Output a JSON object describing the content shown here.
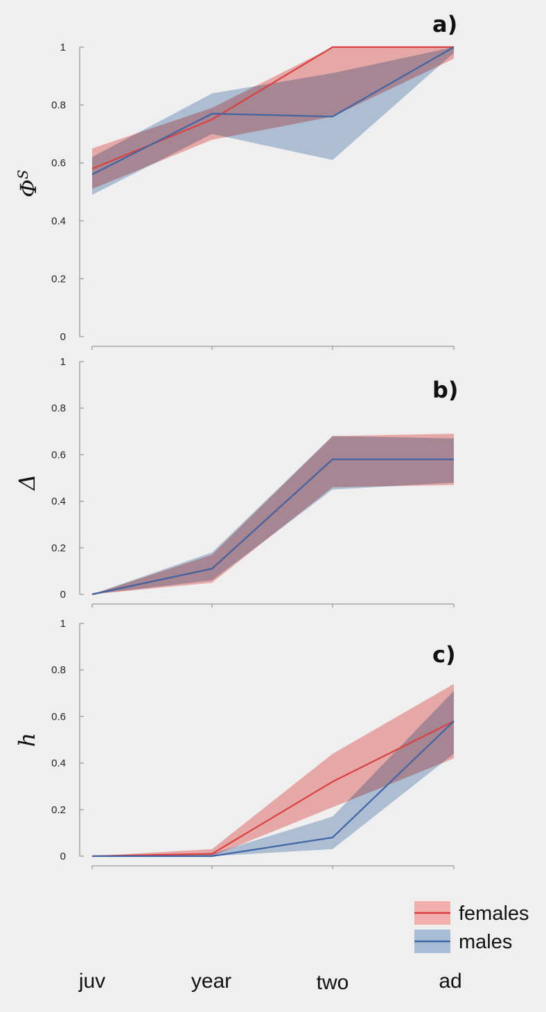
{
  "chart_data": [
    {
      "type": "line",
      "panel_label": "a)",
      "ylabel": "ΦS",
      "ylim": [
        0,
        1
      ],
      "yticks": [
        "0",
        "0.2",
        "0.4",
        "0.6",
        "0.8",
        "1"
      ],
      "categories": [
        "juv",
        "year",
        "two",
        "ad"
      ],
      "series": [
        {
          "name": "females",
          "values": [
            0.58,
            0.75,
            1.0,
            1.0
          ],
          "lower": [
            0.51,
            0.68,
            0.76,
            0.96
          ],
          "upper": [
            0.65,
            0.79,
            1.0,
            1.0
          ]
        },
        {
          "name": "males",
          "values": [
            0.56,
            0.77,
            0.76,
            1.0
          ],
          "lower": [
            0.49,
            0.7,
            0.61,
            0.98
          ],
          "upper": [
            0.62,
            0.84,
            0.91,
            1.0
          ]
        }
      ]
    },
    {
      "type": "line",
      "panel_label": "b)",
      "ylabel": "Δ",
      "ylim": [
        0,
        1
      ],
      "yticks": [
        "0",
        "0.2",
        "0.4",
        "0.6",
        "0.8",
        "1"
      ],
      "categories": [
        "juv",
        "year",
        "two",
        "ad"
      ],
      "series": [
        {
          "name": "females",
          "values": [
            0.0,
            0.11,
            0.58,
            0.58
          ],
          "lower": [
            0.0,
            0.05,
            0.46,
            0.47
          ],
          "upper": [
            0.0,
            0.17,
            0.68,
            0.69
          ]
        },
        {
          "name": "males",
          "values": [
            0.0,
            0.11,
            0.58,
            0.58
          ],
          "lower": [
            0.0,
            0.06,
            0.45,
            0.48
          ],
          "upper": [
            0.0,
            0.18,
            0.68,
            0.67
          ]
        }
      ]
    },
    {
      "type": "line",
      "panel_label": "c)",
      "ylabel": "h",
      "ylim": [
        0,
        1
      ],
      "yticks": [
        "0",
        "0.2",
        "0.4",
        "0.6",
        "0.8",
        "1"
      ],
      "categories": [
        "juv",
        "year",
        "two",
        "ad"
      ],
      "series": [
        {
          "name": "females",
          "values": [
            0.0,
            0.01,
            0.32,
            0.58
          ],
          "lower": [
            0.0,
            0.0,
            0.21,
            0.42
          ],
          "upper": [
            0.0,
            0.03,
            0.44,
            0.74
          ]
        },
        {
          "name": "males",
          "values": [
            0.0,
            0.0,
            0.08,
            0.58
          ],
          "lower": [
            0.0,
            0.0,
            0.03,
            0.44
          ],
          "upper": [
            0.0,
            0.01,
            0.17,
            0.71
          ]
        }
      ]
    }
  ],
  "legend": {
    "females": "females",
    "males": "males"
  },
  "colors": {
    "females_line": "#d9403f",
    "females_band": "#f29a98",
    "males_line": "#3f64a4",
    "males_band": "#7fa1c8",
    "background": "#efefef"
  }
}
